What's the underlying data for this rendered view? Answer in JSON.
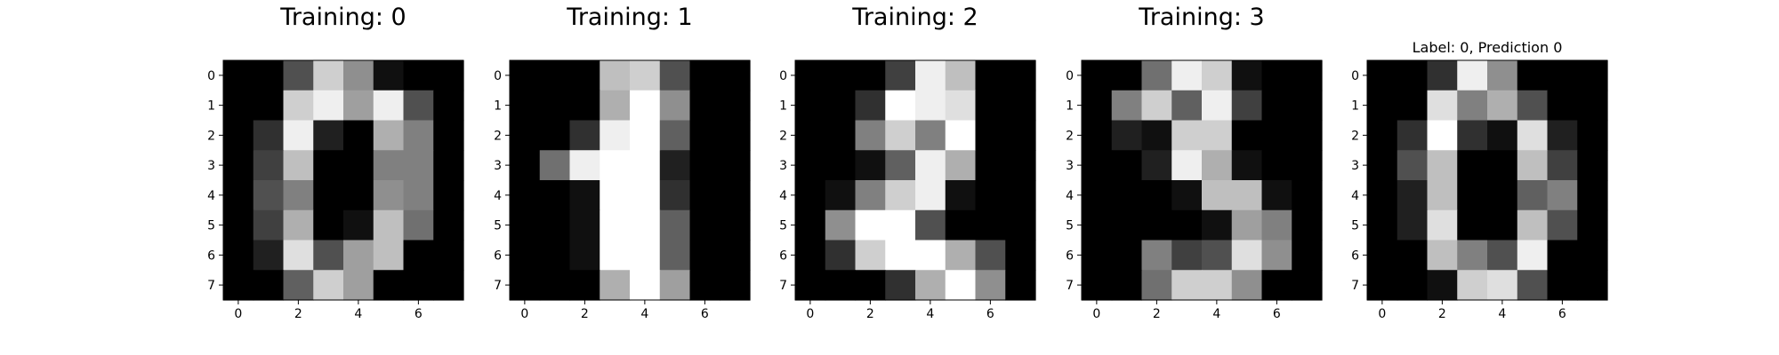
{
  "chart_data": [
    {
      "type": "heatmap",
      "title": "Training: 0",
      "colormap": "gray",
      "vmin": 0,
      "vmax": 16,
      "xticks": [
        "0",
        "2",
        "4",
        "6"
      ],
      "yticks": [
        "0",
        "1",
        "2",
        "3",
        "4",
        "5",
        "6",
        "7"
      ],
      "values": [
        [
          0,
          0,
          5,
          13,
          9,
          1,
          0,
          0
        ],
        [
          0,
          0,
          13,
          15,
          10,
          15,
          5,
          0
        ],
        [
          0,
          3,
          15,
          2,
          0,
          11,
          8,
          0
        ],
        [
          0,
          4,
          12,
          0,
          0,
          8,
          8,
          0
        ],
        [
          0,
          5,
          8,
          0,
          0,
          9,
          8,
          0
        ],
        [
          0,
          4,
          11,
          0,
          1,
          12,
          7,
          0
        ],
        [
          0,
          2,
          14,
          5,
          10,
          12,
          0,
          0
        ],
        [
          0,
          0,
          6,
          13,
          10,
          0,
          0,
          0
        ]
      ]
    },
    {
      "type": "heatmap",
      "title": "Training: 1",
      "colormap": "gray",
      "vmin": 0,
      "vmax": 16,
      "xticks": [
        "0",
        "2",
        "4",
        "6"
      ],
      "yticks": [
        "0",
        "1",
        "2",
        "3",
        "4",
        "5",
        "6",
        "7"
      ],
      "values": [
        [
          0,
          0,
          0,
          12,
          13,
          5,
          0,
          0
        ],
        [
          0,
          0,
          0,
          11,
          16,
          9,
          0,
          0
        ],
        [
          0,
          0,
          3,
          15,
          16,
          6,
          0,
          0
        ],
        [
          0,
          7,
          15,
          16,
          16,
          2,
          0,
          0
        ],
        [
          0,
          0,
          1,
          16,
          16,
          3,
          0,
          0
        ],
        [
          0,
          0,
          1,
          16,
          16,
          6,
          0,
          0
        ],
        [
          0,
          0,
          1,
          16,
          16,
          6,
          0,
          0
        ],
        [
          0,
          0,
          0,
          11,
          16,
          10,
          0,
          0
        ]
      ]
    },
    {
      "type": "heatmap",
      "title": "Training: 2",
      "colormap": "gray",
      "vmin": 0,
      "vmax": 16,
      "xticks": [
        "0",
        "2",
        "4",
        "6"
      ],
      "yticks": [
        "0",
        "1",
        "2",
        "3",
        "4",
        "5",
        "6",
        "7"
      ],
      "values": [
        [
          0,
          0,
          0,
          4,
          15,
          12,
          0,
          0
        ],
        [
          0,
          0,
          3,
          16,
          15,
          14,
          0,
          0
        ],
        [
          0,
          0,
          8,
          13,
          8,
          16,
          0,
          0
        ],
        [
          0,
          0,
          1,
          6,
          15,
          11,
          0,
          0
        ],
        [
          0,
          1,
          8,
          13,
          15,
          1,
          0,
          0
        ],
        [
          0,
          9,
          16,
          16,
          5,
          0,
          0,
          0
        ],
        [
          0,
          3,
          13,
          16,
          16,
          11,
          5,
          0
        ],
        [
          0,
          0,
          0,
          3,
          11,
          16,
          9,
          0
        ]
      ]
    },
    {
      "type": "heatmap",
      "title": "Training: 3",
      "colormap": "gray",
      "vmin": 0,
      "vmax": 16,
      "xticks": [
        "0",
        "2",
        "4",
        "6"
      ],
      "yticks": [
        "0",
        "1",
        "2",
        "3",
        "4",
        "5",
        "6",
        "7"
      ],
      "values": [
        [
          0,
          0,
          7,
          15,
          13,
          1,
          0,
          0
        ],
        [
          0,
          8,
          13,
          6,
          15,
          4,
          0,
          0
        ],
        [
          0,
          2,
          1,
          13,
          13,
          0,
          0,
          0
        ],
        [
          0,
          0,
          2,
          15,
          11,
          1,
          0,
          0
        ],
        [
          0,
          0,
          0,
          1,
          12,
          12,
          1,
          0
        ],
        [
          0,
          0,
          0,
          0,
          1,
          10,
          8,
          0
        ],
        [
          0,
          0,
          8,
          4,
          5,
          14,
          9,
          0
        ],
        [
          0,
          0,
          7,
          13,
          13,
          9,
          0,
          0
        ]
      ]
    },
    {
      "type": "heatmap",
      "title": "Label: 0, Prediction 0",
      "colormap": "gray",
      "vmin": 0,
      "vmax": 16,
      "xticks": [
        "0",
        "2",
        "4",
        "6"
      ],
      "yticks": [
        "0",
        "1",
        "2",
        "3",
        "4",
        "5",
        "6",
        "7"
      ],
      "values": [
        [
          0,
          0,
          3,
          15,
          9,
          0,
          0,
          0
        ],
        [
          0,
          0,
          14,
          8,
          11,
          5,
          0,
          0
        ],
        [
          0,
          3,
          16,
          3,
          1,
          14,
          2,
          0
        ],
        [
          0,
          5,
          12,
          0,
          0,
          12,
          4,
          0
        ],
        [
          0,
          2,
          12,
          0,
          0,
          6,
          8,
          0
        ],
        [
          0,
          2,
          14,
          0,
          0,
          12,
          5,
          0
        ],
        [
          0,
          0,
          12,
          8,
          5,
          15,
          0,
          0
        ],
        [
          0,
          0,
          1,
          13,
          14,
          5,
          0,
          0
        ]
      ]
    }
  ]
}
